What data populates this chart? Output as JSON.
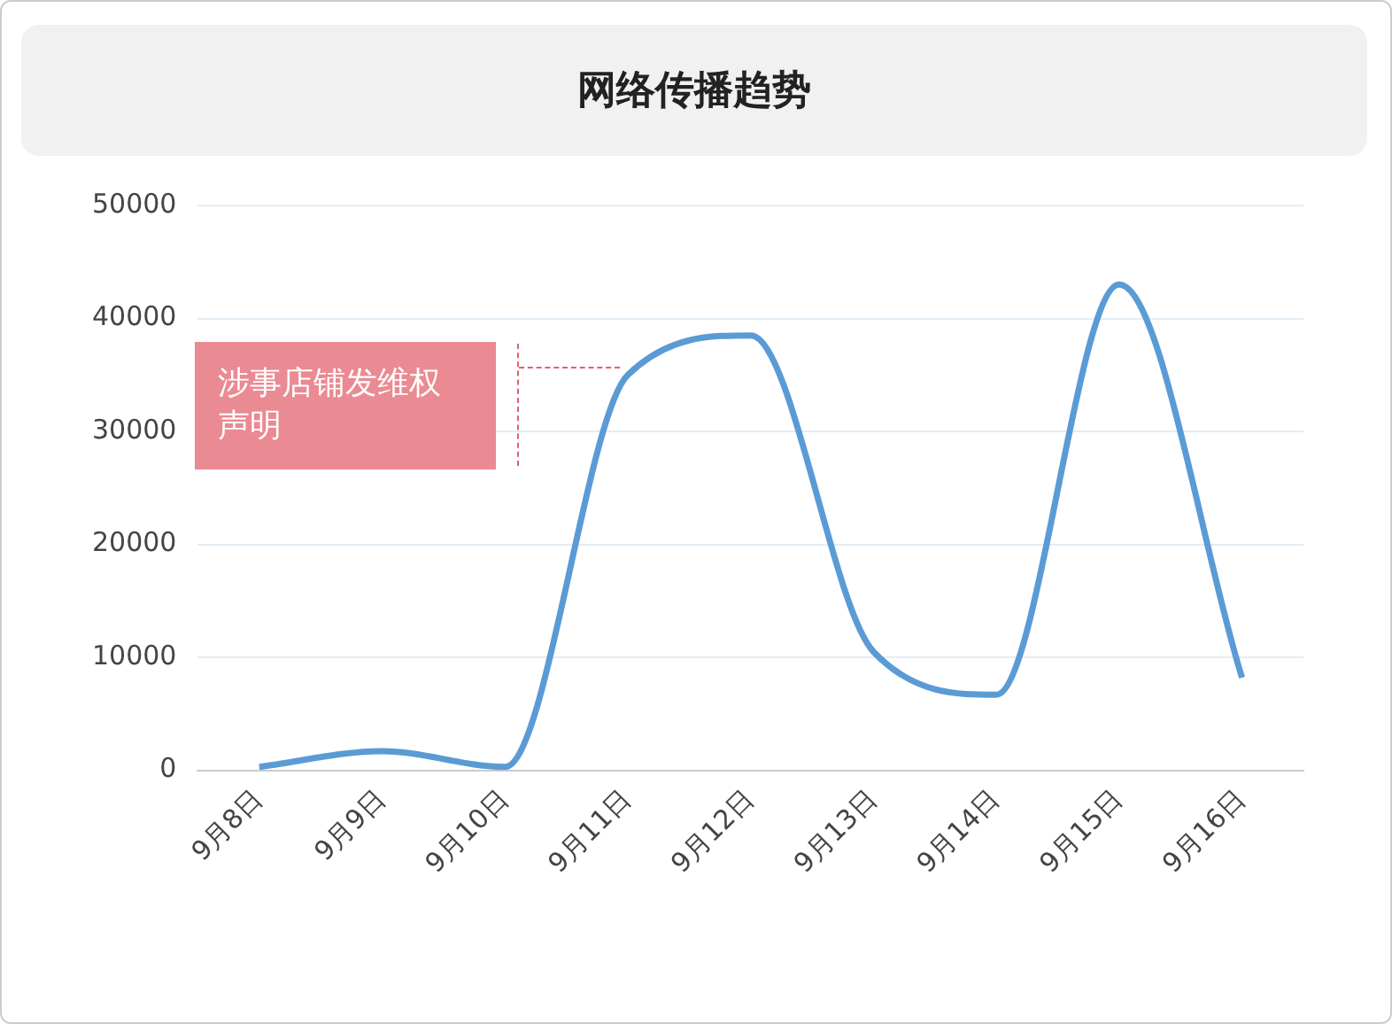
{
  "chart_data": {
    "type": "line",
    "title": "网络传播趋势",
    "categories": [
      "9月8日",
      "9月9日",
      "9月10日",
      "9月11日",
      "9月12日",
      "9月13日",
      "9月14日",
      "9月15日",
      "9月16日"
    ],
    "values": [
      300,
      1700,
      300,
      35000,
      38500,
      10500,
      6700,
      43000,
      8200
    ],
    "color": "#5b9bd5",
    "ylim": [
      0,
      50000
    ],
    "yticks": [
      0,
      10000,
      20000,
      30000,
      40000,
      50000
    ],
    "grid": "y",
    "marker": "none",
    "legend": false,
    "annotations": [
      "涉事店铺发维权声明"
    ]
  }
}
